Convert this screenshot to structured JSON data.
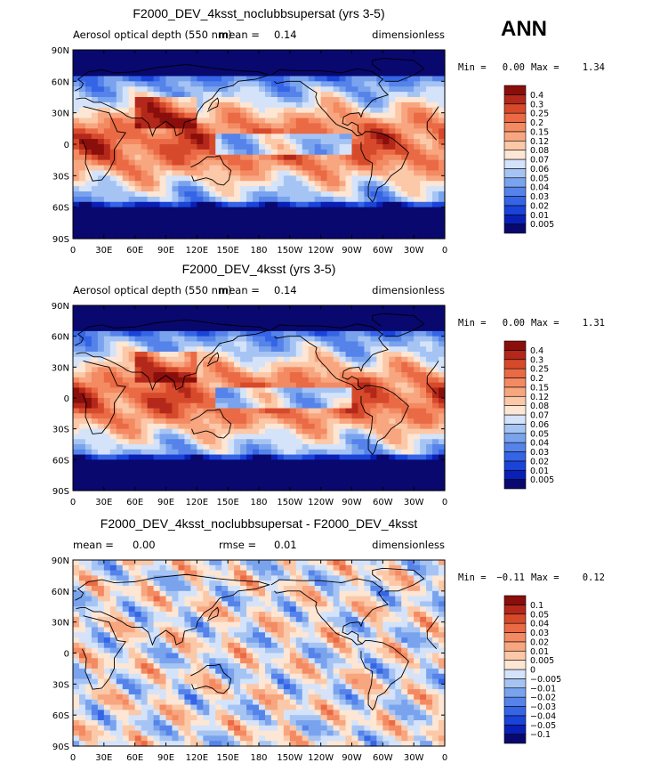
{
  "season_label": "ANN",
  "colors": {
    "seq": [
      "#08086e",
      "#0a1fb5",
      "#1a44d9",
      "#3565e6",
      "#5583ea",
      "#7aa3ee",
      "#a6c4f3",
      "#d4e3fa",
      "#fde6d4",
      "#fbc8a8",
      "#f8a680",
      "#f38a62",
      "#ea6a45",
      "#d64a2b",
      "#b3281a",
      "#8a0e0b"
    ],
    "diff": [
      "#08086e",
      "#0a1fb5",
      "#1a44d9",
      "#3565e6",
      "#5583ea",
      "#7aa3ee",
      "#a6c4f3",
      "#d4e3fa",
      "#fde6d4",
      "#fbc8a8",
      "#f8a680",
      "#f38a62",
      "#ea6a45",
      "#d64a2b",
      "#b3281a",
      "#8a0e0b"
    ]
  },
  "chart_data": [
    {
      "type": "heatmap",
      "panel": "top",
      "title": "F2000_DEV_4ksst_noclubbsupersat (yrs 3-5)",
      "subtitle_left": "Aerosol optical depth (550 nm)",
      "subtitle_mid_label": "mean =",
      "subtitle_mid_value": "0.14",
      "subtitle_right": "dimensionless",
      "min_label": "Min =",
      "min_value": "0.00",
      "max_label": "Max =",
      "max_value": "1.34",
      "x_ticks": [
        "0",
        "30E",
        "60E",
        "90E",
        "120E",
        "150E",
        "180",
        "150W",
        "120W",
        "90W",
        "60W",
        "30W",
        "0"
      ],
      "y_ticks": [
        "90N",
        "60N",
        "30N",
        "0",
        "30S",
        "60S",
        "90S"
      ],
      "xlim": [
        0,
        360
      ],
      "ylim": [
        -90,
        90
      ],
      "levels": [
        "0.005",
        "0.01",
        "0.02",
        "0.03",
        "0.04",
        "0.05",
        "0.06",
        "0.07",
        "0.08",
        "0.12",
        "0.15",
        "0.2",
        "0.25",
        "0.3",
        "0.4"
      ]
    },
    {
      "type": "heatmap",
      "panel": "middle",
      "title": "F2000_DEV_4ksst (yrs 3-5)",
      "subtitle_left": "Aerosol optical depth (550 nm)",
      "subtitle_mid_label": "mean =",
      "subtitle_mid_value": "0.14",
      "subtitle_right": "dimensionless",
      "min_label": "Min =",
      "min_value": "0.00",
      "max_label": "Max =",
      "max_value": "1.31",
      "x_ticks": [
        "0",
        "30E",
        "60E",
        "90E",
        "120E",
        "150E",
        "180",
        "150W",
        "120W",
        "90W",
        "60W",
        "30W",
        "0"
      ],
      "y_ticks": [
        "90N",
        "60N",
        "30N",
        "0",
        "30S",
        "60S",
        "90S"
      ],
      "xlim": [
        0,
        360
      ],
      "ylim": [
        -90,
        90
      ],
      "levels": [
        "0.005",
        "0.01",
        "0.02",
        "0.03",
        "0.04",
        "0.05",
        "0.06",
        "0.07",
        "0.08",
        "0.12",
        "0.15",
        "0.2",
        "0.25",
        "0.3",
        "0.4"
      ]
    },
    {
      "type": "heatmap",
      "panel": "bottom",
      "title": "F2000_DEV_4ksst_noclubbsupersat - F2000_DEV_4ksst",
      "subtitle_left": "mean =",
      "subtitle_left_value": "0.00",
      "subtitle_mid_label": "rmse =",
      "subtitle_mid_value": "0.01",
      "subtitle_right": "dimensionless",
      "min_label": "Min =",
      "min_value": "−0.11",
      "max_label": "Max =",
      "max_value": "0.12",
      "x_ticks": [
        "0",
        "30E",
        "60E",
        "90E",
        "120E",
        "150E",
        "180",
        "150W",
        "120W",
        "90W",
        "60W",
        "30W",
        "0"
      ],
      "y_ticks": [
        "90N",
        "60N",
        "30N",
        "0",
        "30S",
        "60S",
        "90S"
      ],
      "xlim": [
        0,
        360
      ],
      "ylim": [
        -90,
        90
      ],
      "levels": [
        "−0.1",
        "−0.05",
        "−0.04",
        "−0.03",
        "−0.02",
        "−0.01",
        "−0.005",
        "0",
        "0.005",
        "0.01",
        "0.02",
        "0.03",
        "0.04",
        "0.05",
        "0.1"
      ]
    }
  ]
}
